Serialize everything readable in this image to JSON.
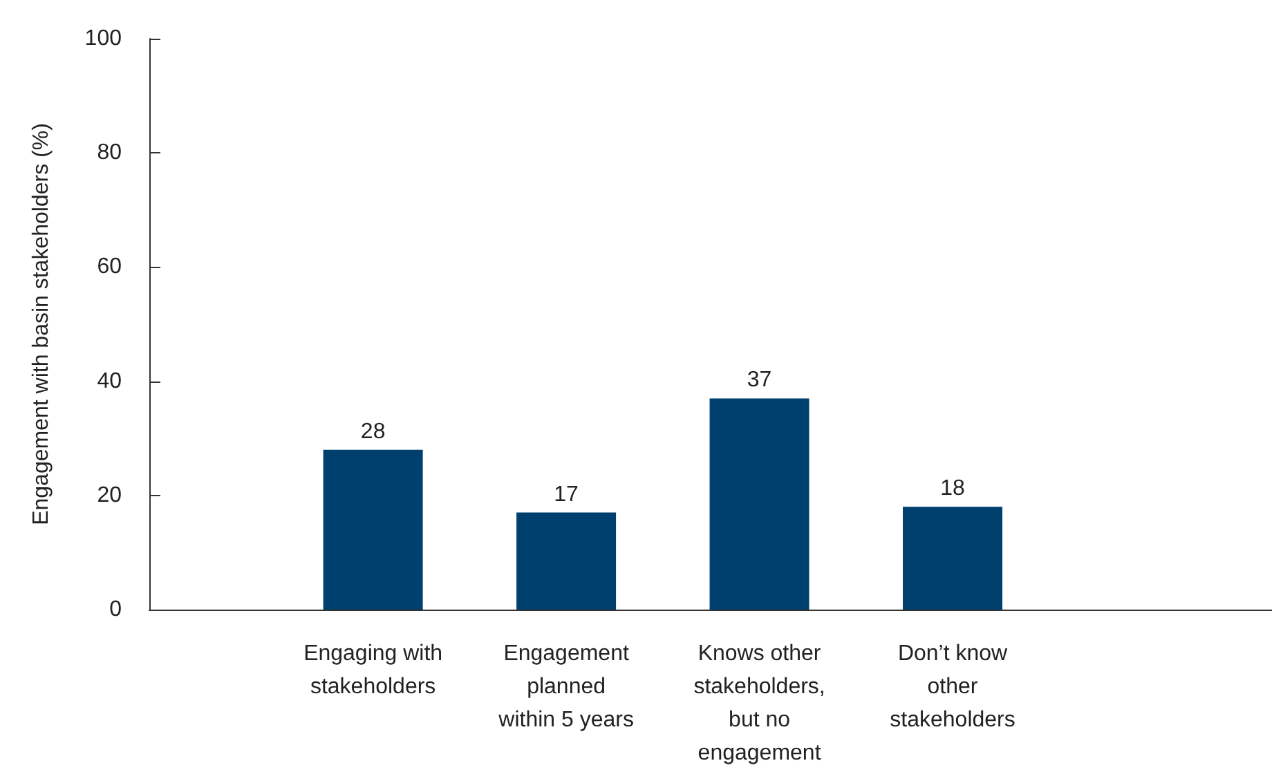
{
  "chart_data": {
    "type": "bar",
    "ylabel": "Engagement with basin stakeholders (%)",
    "categories": [
      "Engaging with\nstakeholders",
      "Engagement\nplanned\nwithin 5 years",
      "Knows other\nstakeholders,\nbut no\nengagement",
      "Don’t know\nother\nstakeholders"
    ],
    "values": [
      28,
      17,
      37,
      18
    ],
    "color": "#00406e",
    "ylim": [
      0,
      100
    ],
    "yticks": [
      0,
      20,
      40,
      60,
      80,
      100
    ],
    "grid": false,
    "data_labels": true
  }
}
